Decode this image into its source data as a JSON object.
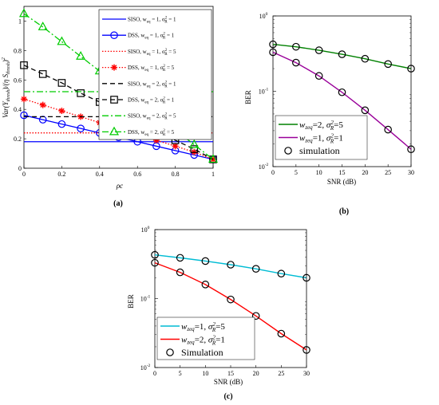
{
  "panels": [
    {
      "label": "(a)",
      "xlabel": "ρc",
      "ylabel": "Var(Y_thresh)/(η S_thresh)^2",
      "ylabel_parts": {
        "pre": "Var(",
        "y": "Y",
        "ysub": "thresh",
        "mid": ")/(η ",
        "s": "S",
        "ssub": "thresh",
        "post": ")",
        "sup": "2"
      },
      "x_ticks": [
        "0",
        "0.2",
        "0.4",
        "0.6",
        "0.8",
        "1"
      ],
      "y_ticks": [
        "0",
        "0.2",
        "0.4",
        "0.6",
        "0.8",
        "1"
      ],
      "legend": [
        {
          "key": "siso1",
          "pre": "SISO, w",
          "sub": "eq",
          "post": " = 1, σ",
          "sup2": "2",
          "subR": "R",
          "end": " = 1"
        },
        {
          "key": "dss1",
          "pre": "DSS, w",
          "sub": "eq",
          "post": " = 1, σ",
          "sup2": "2",
          "subR": "R",
          "end": " = 1"
        },
        {
          "key": "siso2",
          "pre": "SISO, w",
          "sub": "eq",
          "post": " = 1, σ",
          "sup2": "2",
          "subR": "R",
          "end": " = 5"
        },
        {
          "key": "dss2",
          "pre": "DSS, w",
          "sub": "eq",
          "post": " = 1, σ",
          "sup2": "2",
          "subR": "R",
          "end": " = 5"
        },
        {
          "key": "siso3",
          "pre": "SISO, w",
          "sub": "eq",
          "post": " = 2, σ",
          "sup2": "2",
          "subR": "R",
          "end": " = 1"
        },
        {
          "key": "dss3",
          "pre": "DSS, w",
          "sub": "eq",
          "post": " = 2, σ",
          "sup2": "2",
          "subR": "R",
          "end": " = 1"
        },
        {
          "key": "siso4",
          "pre": "SISO, w",
          "sub": "eq",
          "post": " = 2, σ",
          "sup2": "2",
          "subR": "R",
          "end": " = 5"
        },
        {
          "key": "dss4",
          "pre": "DSS, w",
          "sub": "eq",
          "post": " = 2, σ",
          "sup2": "2",
          "subR": "R",
          "end": " = 5"
        }
      ]
    },
    {
      "label": "(b)",
      "xlabel": "SNR (dB)",
      "ylabel": "BER",
      "x_ticks": [
        "0",
        "5",
        "10",
        "15",
        "20",
        "25",
        "30"
      ],
      "y_ticks": [
        {
          "base": "10",
          "exp": "-2"
        },
        {
          "base": "10",
          "exp": "-1"
        },
        {
          "base": "10",
          "exp": "0"
        }
      ],
      "legend": [
        {
          "key": "g",
          "w": "w",
          "sub": "zeq",
          "eq": "=2, ",
          "sigma": "σ",
          "sup": "2",
          "subR": "R",
          "end": "=5"
        },
        {
          "key": "p",
          "w": "w",
          "sub": "zeq",
          "eq": "=1, ",
          "sigma": "σ",
          "sup": "2",
          "subR": "R",
          "end": "=1"
        },
        {
          "key": "sim",
          "text": "simulation"
        }
      ]
    },
    {
      "label": "(c)",
      "xlabel": "SNR (dB)",
      "ylabel": "BER",
      "x_ticks": [
        "0",
        "5",
        "10",
        "15",
        "20",
        "25",
        "30"
      ],
      "y_ticks": [
        {
          "base": "10",
          "exp": "-2"
        },
        {
          "base": "10",
          "exp": "-1"
        },
        {
          "base": "10",
          "exp": "0"
        }
      ],
      "legend": [
        {
          "key": "c",
          "w": "w",
          "sub": "zeq",
          "eq": "=1, ",
          "sigma": "σ",
          "sup": "2",
          "subR": "R",
          "end": "=5"
        },
        {
          "key": "r",
          "w": "w",
          "sub": "zeq",
          "eq": "=2, ",
          "sigma": "σ",
          "sup": "2",
          "subR": "R",
          "end": "=1"
        },
        {
          "key": "sim",
          "text": "Simulation"
        }
      ]
    }
  ],
  "chart_data": [
    {
      "type": "line",
      "xlabel": "ρc",
      "ylabel": "Var(Y_thresh)/(η S_thresh)^2",
      "xlim": [
        0,
        1
      ],
      "ylim": [
        0,
        1.1
      ],
      "grid": false,
      "legend_position": "top-right",
      "series": [
        {
          "name": "SISO, w_eq = 1, σ_R^2 = 1",
          "color": "#0000ff",
          "style": "solid",
          "marker": "none",
          "x": [
            0,
            1
          ],
          "y": [
            0.18,
            0.18
          ]
        },
        {
          "name": "DSS, w_eq = 1, σ_R^2 = 1",
          "color": "#0000ff",
          "style": "solid",
          "marker": "circle",
          "x": [
            0,
            0.1,
            0.2,
            0.3,
            0.4,
            0.5,
            0.6,
            0.7,
            0.8,
            0.9,
            1
          ],
          "y": [
            0.36,
            0.33,
            0.3,
            0.27,
            0.24,
            0.21,
            0.18,
            0.15,
            0.12,
            0.09,
            0.06
          ]
        },
        {
          "name": "SISO, w_eq = 1, σ_R^2 = 5",
          "color": "#ff0000",
          "style": "dotted",
          "marker": "none",
          "x": [
            0,
            1
          ],
          "y": [
            0.24,
            0.24
          ]
        },
        {
          "name": "DSS, w_eq = 1, σ_R^2 = 5",
          "color": "#ff0000",
          "style": "dotted",
          "marker": "asterisk",
          "x": [
            0,
            0.1,
            0.2,
            0.3,
            0.4,
            0.5,
            0.6,
            0.7,
            0.8,
            0.9,
            1
          ],
          "y": [
            0.47,
            0.43,
            0.39,
            0.35,
            0.31,
            0.27,
            0.23,
            0.19,
            0.15,
            0.11,
            0.06
          ]
        },
        {
          "name": "SISO, w_eq = 2, σ_R^2 = 1",
          "color": "#000000",
          "style": "dashed",
          "marker": "none",
          "x": [
            0,
            1
          ],
          "y": [
            0.35,
            0.35
          ]
        },
        {
          "name": "DSS, w_eq = 2, σ_R^2 = 1",
          "color": "#000000",
          "style": "dashed",
          "marker": "square",
          "x": [
            0,
            0.1,
            0.2,
            0.3,
            0.4,
            0.5,
            0.6,
            0.7,
            0.8,
            0.9,
            1
          ],
          "y": [
            0.7,
            0.64,
            0.58,
            0.51,
            0.45,
            0.38,
            0.32,
            0.26,
            0.19,
            0.13,
            0.06
          ]
        },
        {
          "name": "SISO, w_eq = 2, σ_R^2 = 5",
          "color": "#00cc00",
          "style": "dashdot",
          "marker": "none",
          "x": [
            0,
            1
          ],
          "y": [
            0.52,
            0.52
          ]
        },
        {
          "name": "DSS, w_eq = 2, σ_R^2 = 5",
          "color": "#00cc00",
          "style": "dashdot",
          "marker": "triangle",
          "x": [
            0,
            0.1,
            0.2,
            0.3,
            0.4,
            0.5,
            0.6,
            0.7,
            0.8,
            0.9,
            1
          ],
          "y": [
            1.05,
            0.96,
            0.86,
            0.76,
            0.66,
            0.56,
            0.46,
            0.36,
            0.26,
            0.16,
            0.06
          ]
        }
      ]
    },
    {
      "type": "line",
      "xlabel": "SNR (dB)",
      "ylabel": "BER",
      "xlim": [
        0,
        30
      ],
      "ylim": [
        0.01,
        1
      ],
      "yscale": "log",
      "grid": false,
      "legend_position": "bottom-left",
      "series": [
        {
          "name": "w_zeq=2, σ_R^2=5",
          "color": "#008000",
          "x": [
            0,
            5,
            10,
            15,
            20,
            25,
            30
          ],
          "y": [
            0.42,
            0.39,
            0.35,
            0.31,
            0.27,
            0.23,
            0.2
          ]
        },
        {
          "name": "w_zeq=1, σ_R^2=1",
          "color": "#990099",
          "x": [
            0,
            5,
            10,
            15,
            20,
            25,
            30
          ],
          "y": [
            0.33,
            0.24,
            0.16,
            0.097,
            0.056,
            0.031,
            0.017
          ]
        },
        {
          "name": "simulation",
          "color": "#000000",
          "marker": "circle",
          "x": [
            0,
            5,
            10,
            15,
            20,
            25,
            30,
            0,
            5,
            10,
            15,
            20,
            25,
            30
          ],
          "y": [
            0.42,
            0.39,
            0.35,
            0.31,
            0.27,
            0.23,
            0.2,
            0.33,
            0.24,
            0.16,
            0.097,
            0.056,
            0.031,
            0.017
          ]
        }
      ]
    },
    {
      "type": "line",
      "xlabel": "SNR (dB)",
      "ylabel": "BER",
      "xlim": [
        0,
        30
      ],
      "ylim": [
        0.01,
        1
      ],
      "yscale": "log",
      "grid": false,
      "legend_position": "bottom-left",
      "series": [
        {
          "name": "w_zeq=1, σ_R^2=5",
          "color": "#00bcd4",
          "x": [
            0,
            5,
            10,
            15,
            20,
            25,
            30
          ],
          "y": [
            0.43,
            0.39,
            0.35,
            0.31,
            0.27,
            0.23,
            0.2
          ]
        },
        {
          "name": "w_zeq=2, σ_R^2=1",
          "color": "#ff0000",
          "x": [
            0,
            5,
            10,
            15,
            20,
            25,
            30
          ],
          "y": [
            0.33,
            0.24,
            0.16,
            0.097,
            0.056,
            0.031,
            0.018
          ]
        },
        {
          "name": "Simulation",
          "color": "#000000",
          "marker": "circle",
          "x": [
            0,
            5,
            10,
            15,
            20,
            25,
            30,
            0,
            5,
            10,
            15,
            20,
            25,
            30
          ],
          "y": [
            0.43,
            0.39,
            0.35,
            0.31,
            0.27,
            0.23,
            0.2,
            0.33,
            0.24,
            0.16,
            0.097,
            0.056,
            0.031,
            0.018
          ]
        }
      ]
    }
  ]
}
